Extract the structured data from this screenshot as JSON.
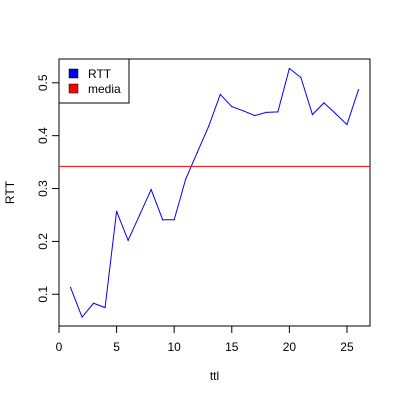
{
  "chart_data": {
    "type": "line",
    "title": "",
    "xlabel": "ttl",
    "ylabel": "RTT",
    "xlim": [
      0,
      27
    ],
    "ylim": [
      0.04,
      0.545
    ],
    "xticks": [
      0,
      5,
      10,
      15,
      20,
      25
    ],
    "yticks": [
      0.1,
      0.2,
      0.3,
      0.4,
      0.5
    ],
    "grid": false,
    "legend_position": "top-left",
    "series": [
      {
        "name": "RTT",
        "color": "#0000ff",
        "x": [
          1,
          2,
          3,
          4,
          5,
          6,
          7,
          8,
          9,
          10,
          11,
          12,
          13,
          14,
          15,
          16,
          17,
          18,
          19,
          20,
          21,
          22,
          23,
          24,
          25,
          26
        ],
        "y": [
          0.113,
          0.057,
          0.083,
          0.075,
          0.257,
          0.202,
          0.25,
          0.298,
          0.241,
          0.241,
          0.318,
          0.368,
          0.418,
          0.478,
          0.455,
          0.447,
          0.438,
          0.444,
          0.445,
          0.527,
          0.51,
          0.44,
          0.462,
          0.442,
          0.421,
          0.487
        ]
      },
      {
        "name": "media",
        "color": "#ff0000",
        "type": "hline",
        "y": 0.342
      }
    ]
  }
}
